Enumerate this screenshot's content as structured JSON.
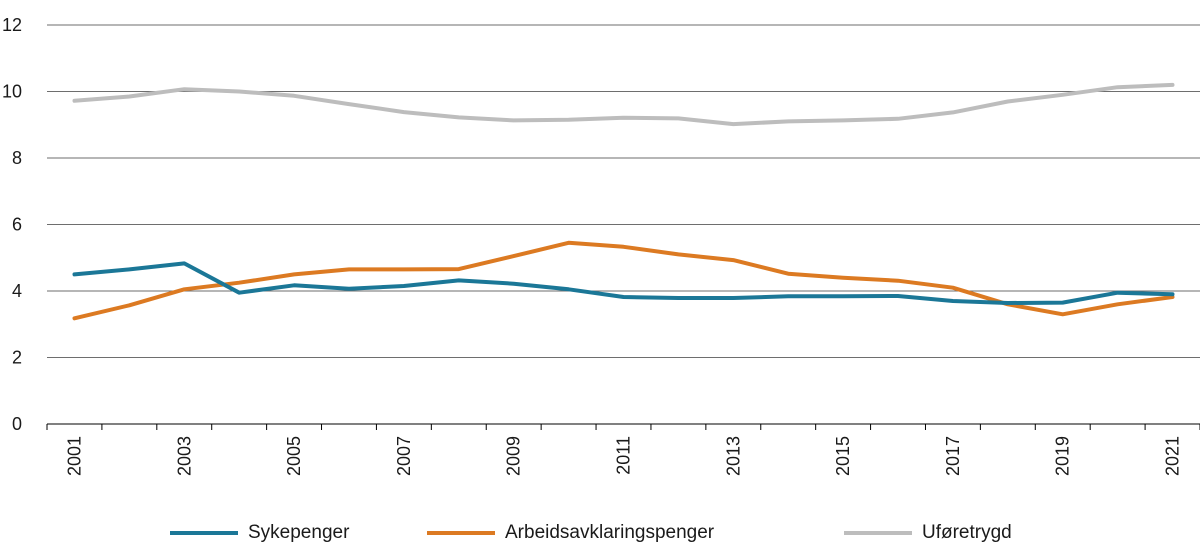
{
  "chart_data": {
    "type": "line",
    "x": [
      "2001",
      "2002",
      "2003",
      "2004",
      "2005",
      "2006",
      "2007",
      "2008",
      "2009",
      "2010",
      "2011",
      "2012",
      "2013",
      "2014",
      "2015",
      "2016",
      "2017",
      "2018",
      "2019",
      "2020",
      "2021"
    ],
    "x_tick_labels": [
      "2001",
      "2003",
      "2005",
      "2007",
      "2009",
      "2011",
      "2013",
      "2015",
      "2017",
      "2019",
      "2021"
    ],
    "y_tick_labels": [
      "0",
      "2",
      "4",
      "6",
      "8",
      "10",
      "12"
    ],
    "ylim": [
      0,
      12
    ],
    "grid": true,
    "legend_position": "bottom",
    "series": [
      {
        "name": "Sykepenger",
        "color": "#1b7797",
        "values": [
          4.5,
          4.65,
          4.83,
          3.95,
          4.17,
          4.07,
          4.15,
          4.32,
          4.22,
          4.05,
          3.82,
          3.79,
          3.79,
          3.84,
          3.84,
          3.85,
          3.7,
          3.64,
          3.65,
          3.95,
          3.9
        ]
      },
      {
        "name": "Arbeidsavklaringspenger",
        "color": "#dc7a22",
        "values": [
          3.18,
          3.57,
          4.05,
          4.25,
          4.5,
          4.65,
          4.65,
          4.66,
          5.05,
          5.45,
          5.33,
          5.1,
          4.93,
          4.52,
          4.4,
          4.31,
          4.1,
          3.6,
          3.3,
          3.6,
          3.82
        ]
      },
      {
        "name": "Uføretrygd",
        "color": "#bdbdbd",
        "values": [
          9.72,
          9.85,
          10.07,
          10.0,
          9.87,
          9.62,
          9.38,
          9.22,
          9.13,
          9.15,
          9.21,
          9.19,
          9.02,
          9.1,
          9.13,
          9.18,
          9.37,
          9.7,
          9.9,
          10.13,
          10.2
        ]
      }
    ]
  }
}
